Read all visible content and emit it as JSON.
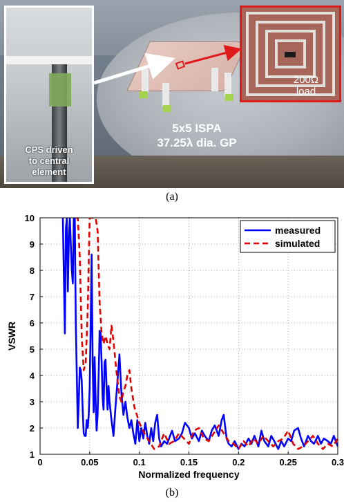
{
  "figure_a": {
    "inset_left_label": [
      "CPS driven",
      "to central",
      "element"
    ],
    "inset_right_label": [
      "200Ω",
      "load"
    ],
    "center_label": [
      "5x5 ISPA",
      "37.25λ dia. GP"
    ],
    "caption": "(a)"
  },
  "figure_b": {
    "caption": "(b)"
  },
  "colors": {
    "measured": "#0000ff",
    "simulated": "#e00000",
    "highlight_box": "#e01a1a"
  },
  "chart_data": {
    "type": "line",
    "title": "",
    "xlabel": "Normalized frequency",
    "ylabel": "VSWR",
    "xlim": [
      0,
      0.3
    ],
    "ylim": [
      1,
      10
    ],
    "xticks": [
      0,
      0.05,
      0.1,
      0.15,
      0.2,
      0.25,
      0.3
    ],
    "xtick_labels": [
      "0",
      "0.05",
      "0.1",
      "0.15",
      "0.2",
      "0.25",
      "0.3"
    ],
    "yticks": [
      1,
      2,
      3,
      4,
      5,
      6,
      7,
      8,
      9,
      10
    ],
    "ytick_labels": [
      "1",
      "2",
      "3",
      "4",
      "5",
      "6",
      "7",
      "8",
      "9",
      "10"
    ],
    "grid": true,
    "legend_position": "top-right",
    "series": [
      {
        "name": "measured",
        "style": "solid",
        "x": [
          0.023,
          0.025,
          0.026,
          0.027,
          0.028,
          0.029,
          0.03,
          0.031,
          0.032,
          0.033,
          0.034,
          0.035,
          0.036,
          0.037,
          0.038,
          0.039,
          0.04,
          0.041,
          0.042,
          0.043,
          0.044,
          0.045,
          0.046,
          0.047,
          0.048,
          0.049,
          0.05,
          0.051,
          0.052,
          0.053,
          0.054,
          0.055,
          0.056,
          0.057,
          0.058,
          0.059,
          0.06,
          0.061,
          0.062,
          0.063,
          0.064,
          0.065,
          0.066,
          0.067,
          0.068,
          0.069,
          0.07,
          0.072,
          0.074,
          0.076,
          0.078,
          0.08,
          0.082,
          0.084,
          0.086,
          0.088,
          0.09,
          0.092,
          0.094,
          0.096,
          0.098,
          0.1,
          0.102,
          0.104,
          0.106,
          0.108,
          0.11,
          0.112,
          0.114,
          0.116,
          0.118,
          0.12,
          0.122,
          0.125,
          0.128,
          0.13,
          0.133,
          0.136,
          0.14,
          0.143,
          0.146,
          0.15,
          0.153,
          0.156,
          0.16,
          0.163,
          0.166,
          0.17,
          0.173,
          0.176,
          0.18,
          0.183,
          0.185,
          0.188,
          0.19,
          0.193,
          0.196,
          0.2,
          0.203,
          0.206,
          0.21,
          0.213,
          0.216,
          0.22,
          0.223,
          0.226,
          0.23,
          0.233,
          0.236,
          0.24,
          0.243,
          0.246,
          0.25,
          0.253,
          0.256,
          0.26,
          0.263,
          0.266,
          0.27,
          0.273,
          0.276,
          0.28,
          0.283,
          0.286,
          0.29,
          0.293,
          0.296,
          0.3
        ],
        "y": [
          10,
          5.6,
          9.6,
          10,
          7.2,
          9.2,
          10,
          9.0,
          8.0,
          7.5,
          10,
          10,
          6.0,
          4.0,
          2.0,
          3.0,
          4.3,
          4.2,
          3.8,
          2.6,
          1.8,
          1.7,
          1.7,
          2.3,
          2.0,
          2.5,
          3.5,
          6.0,
          8.6,
          4.5,
          2.6,
          4.7,
          3.0,
          1.9,
          2.5,
          4.0,
          5.7,
          5.6,
          4.5,
          3.2,
          2.7,
          4.5,
          4.6,
          3.5,
          2.7,
          3.6,
          3.0,
          2.3,
          1.7,
          2.8,
          3.8,
          4.8,
          3.3,
          2.5,
          3.0,
          2.4,
          2.0,
          2.3,
          1.8,
          1.4,
          2.3,
          1.5,
          2.0,
          1.6,
          2.2,
          1.7,
          1.4,
          2.0,
          1.5,
          2.2,
          2.5,
          1.6,
          1.3,
          1.5,
          1.4,
          1.6,
          1.9,
          1.5,
          1.6,
          1.8,
          2.2,
          2.0,
          1.6,
          1.8,
          1.5,
          1.9,
          1.7,
          1.5,
          1.9,
          2.1,
          1.7,
          2.3,
          2.5,
          1.6,
          1.4,
          1.3,
          1.5,
          1.2,
          1.4,
          1.3,
          1.6,
          1.4,
          1.7,
          1.3,
          1.9,
          1.5,
          1.3,
          1.7,
          1.5,
          1.2,
          1.5,
          1.3,
          1.6,
          1.5,
          1.9,
          2.0,
          1.6,
          1.3,
          1.7,
          1.5,
          1.4,
          1.7,
          1.4,
          1.6,
          1.5,
          1.4,
          1.7,
          1.3
        ]
      },
      {
        "name": "simulated",
        "style": "dashed",
        "x": [
          0.036,
          0.038,
          0.04,
          0.042,
          0.044,
          0.046,
          0.048,
          0.05,
          0.052,
          0.054,
          0.056,
          0.058,
          0.06,
          0.062,
          0.064,
          0.066,
          0.068,
          0.07,
          0.072,
          0.074,
          0.076,
          0.078,
          0.08,
          0.082,
          0.084,
          0.086,
          0.088,
          0.09,
          0.092,
          0.095,
          0.1,
          0.105,
          0.11,
          0.115,
          0.12,
          0.125,
          0.13,
          0.135,
          0.14,
          0.145,
          0.15,
          0.155,
          0.16,
          0.165,
          0.17,
          0.175,
          0.18,
          0.185,
          0.19,
          0.195,
          0.2,
          0.205,
          0.21,
          0.215,
          0.22,
          0.225,
          0.23,
          0.235,
          0.24,
          0.245,
          0.25,
          0.255,
          0.26,
          0.265,
          0.27,
          0.275,
          0.28,
          0.285,
          0.29,
          0.295,
          0.3
        ],
        "y": [
          10,
          10,
          8.5,
          5.5,
          4.2,
          4.5,
          6.5,
          10,
          10,
          10,
          10,
          9.5,
          6.8,
          5.6,
          5.2,
          5.5,
          5.2,
          5.0,
          5.9,
          5.3,
          4.5,
          3.8,
          3.2,
          3.0,
          3.4,
          3.6,
          4.0,
          4.2,
          3.5,
          2.8,
          2.2,
          1.8,
          1.5,
          1.2,
          1.3,
          1.8,
          1.4,
          1.5,
          1.8,
          1.6,
          1.4,
          1.9,
          2.0,
          1.6,
          1.5,
          1.8,
          2.1,
          1.8,
          1.5,
          1.4,
          1.2,
          1.5,
          1.3,
          1.6,
          1.4,
          1.7,
          1.5,
          1.3,
          1.5,
          1.6,
          1.9,
          1.4,
          1.2,
          1.3,
          1.5,
          1.7,
          1.4,
          1.2,
          1.4,
          1.3,
          1.6
        ]
      }
    ]
  }
}
